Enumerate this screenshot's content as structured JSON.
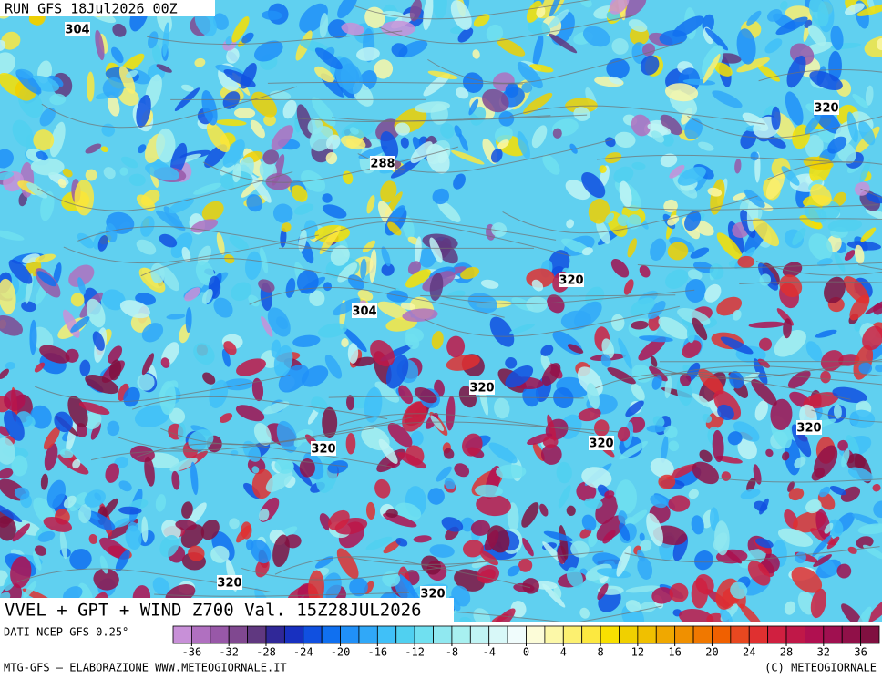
{
  "header": {
    "run": "RUN GFS 18Jul2026 00Z"
  },
  "map": {
    "title": "VVEL + GPT + WIND Z700 Val. 15Z28JUL2026",
    "contour_labels": [
      304,
      320,
      288,
      320,
      304,
      320,
      320,
      320,
      320,
      320,
      320
    ]
  },
  "colorbar": {
    "source": "DATI NCEP GFS 0.25°",
    "lim": [
      -38,
      38
    ],
    "ticks": [
      -36,
      -32,
      -28,
      -24,
      -20,
      -16,
      -12,
      -8,
      -4,
      0,
      4,
      8,
      12,
      16,
      20,
      24,
      28,
      32,
      36
    ],
    "colors": [
      "#c890d8",
      "#b070c0",
      "#9858a8",
      "#804890",
      "#603880",
      "#302898",
      "#1830c0",
      "#1050e0",
      "#1070f0",
      "#2090f8",
      "#30a8f8",
      "#40c0f8",
      "#50d0f0",
      "#70e0f0",
      "#90e8f0",
      "#a8f0f0",
      "#c0f4f4",
      "#d8f8f8",
      "#f0fcfc",
      "#fcfcd8",
      "#fcf8a8",
      "#fcf070",
      "#fce840",
      "#f8e000",
      "#f0d000",
      "#f0c000",
      "#f0a800",
      "#f09000",
      "#f07800",
      "#f06000",
      "#e84820",
      "#e03030",
      "#d02040",
      "#c01848",
      "#b01050",
      "#a01050",
      "#901048",
      "#801040"
    ]
  },
  "footer": {
    "left": "MTG-GFS — ELABORAZIONE WWW.METEOGIORNALE.IT",
    "right": "(C) METEOGIORNALE"
  }
}
